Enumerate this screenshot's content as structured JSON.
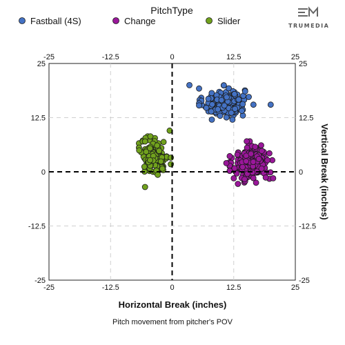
{
  "brand": {
    "name": "TRUMEDIA"
  },
  "chart_data": {
    "type": "scatter",
    "subtitle": "Pitch movement from pitcher's POV",
    "xlabel": "Horizontal Break (inches)",
    "ylabel": "Vertical Break (inches)",
    "xlim": [
      -25,
      25
    ],
    "ylim": [
      -25,
      25
    ],
    "x_ticks": [
      "-25",
      "-12.5",
      "0",
      "12.5",
      "25"
    ],
    "y_ticks": [
      "25",
      "12.5",
      "0",
      "-12.5",
      "-25"
    ],
    "grid": true,
    "legend": {
      "title": "PitchType",
      "placement": "top"
    },
    "series": [
      {
        "name": "Fastball (4S)",
        "color": "#4472c4",
        "center": [
          10.5,
          16
        ],
        "spread": [
          2.8,
          2.2
        ],
        "count": 170,
        "points": [
          [
            3.5,
            20
          ],
          [
            20,
            15.5
          ],
          [
            16.5,
            15.5
          ]
        ]
      },
      {
        "name": "Change",
        "color": "#9a179a",
        "center": [
          16,
          2
        ],
        "spread": [
          2.4,
          2.8
        ],
        "count": 200,
        "points": [
          [
            11,
            2
          ],
          [
            20.5,
            -1.5
          ],
          [
            12.5,
            -1.5
          ]
        ]
      },
      {
        "name": "Slider",
        "color": "#71a21d",
        "center": [
          -3.5,
          3.5
        ],
        "spread": [
          1.8,
          2.6
        ],
        "count": 150,
        "points": [
          [
            -5.5,
            7
          ],
          [
            -0.5,
            9.5
          ],
          [
            -5.5,
            -3.5
          ]
        ]
      }
    ]
  }
}
